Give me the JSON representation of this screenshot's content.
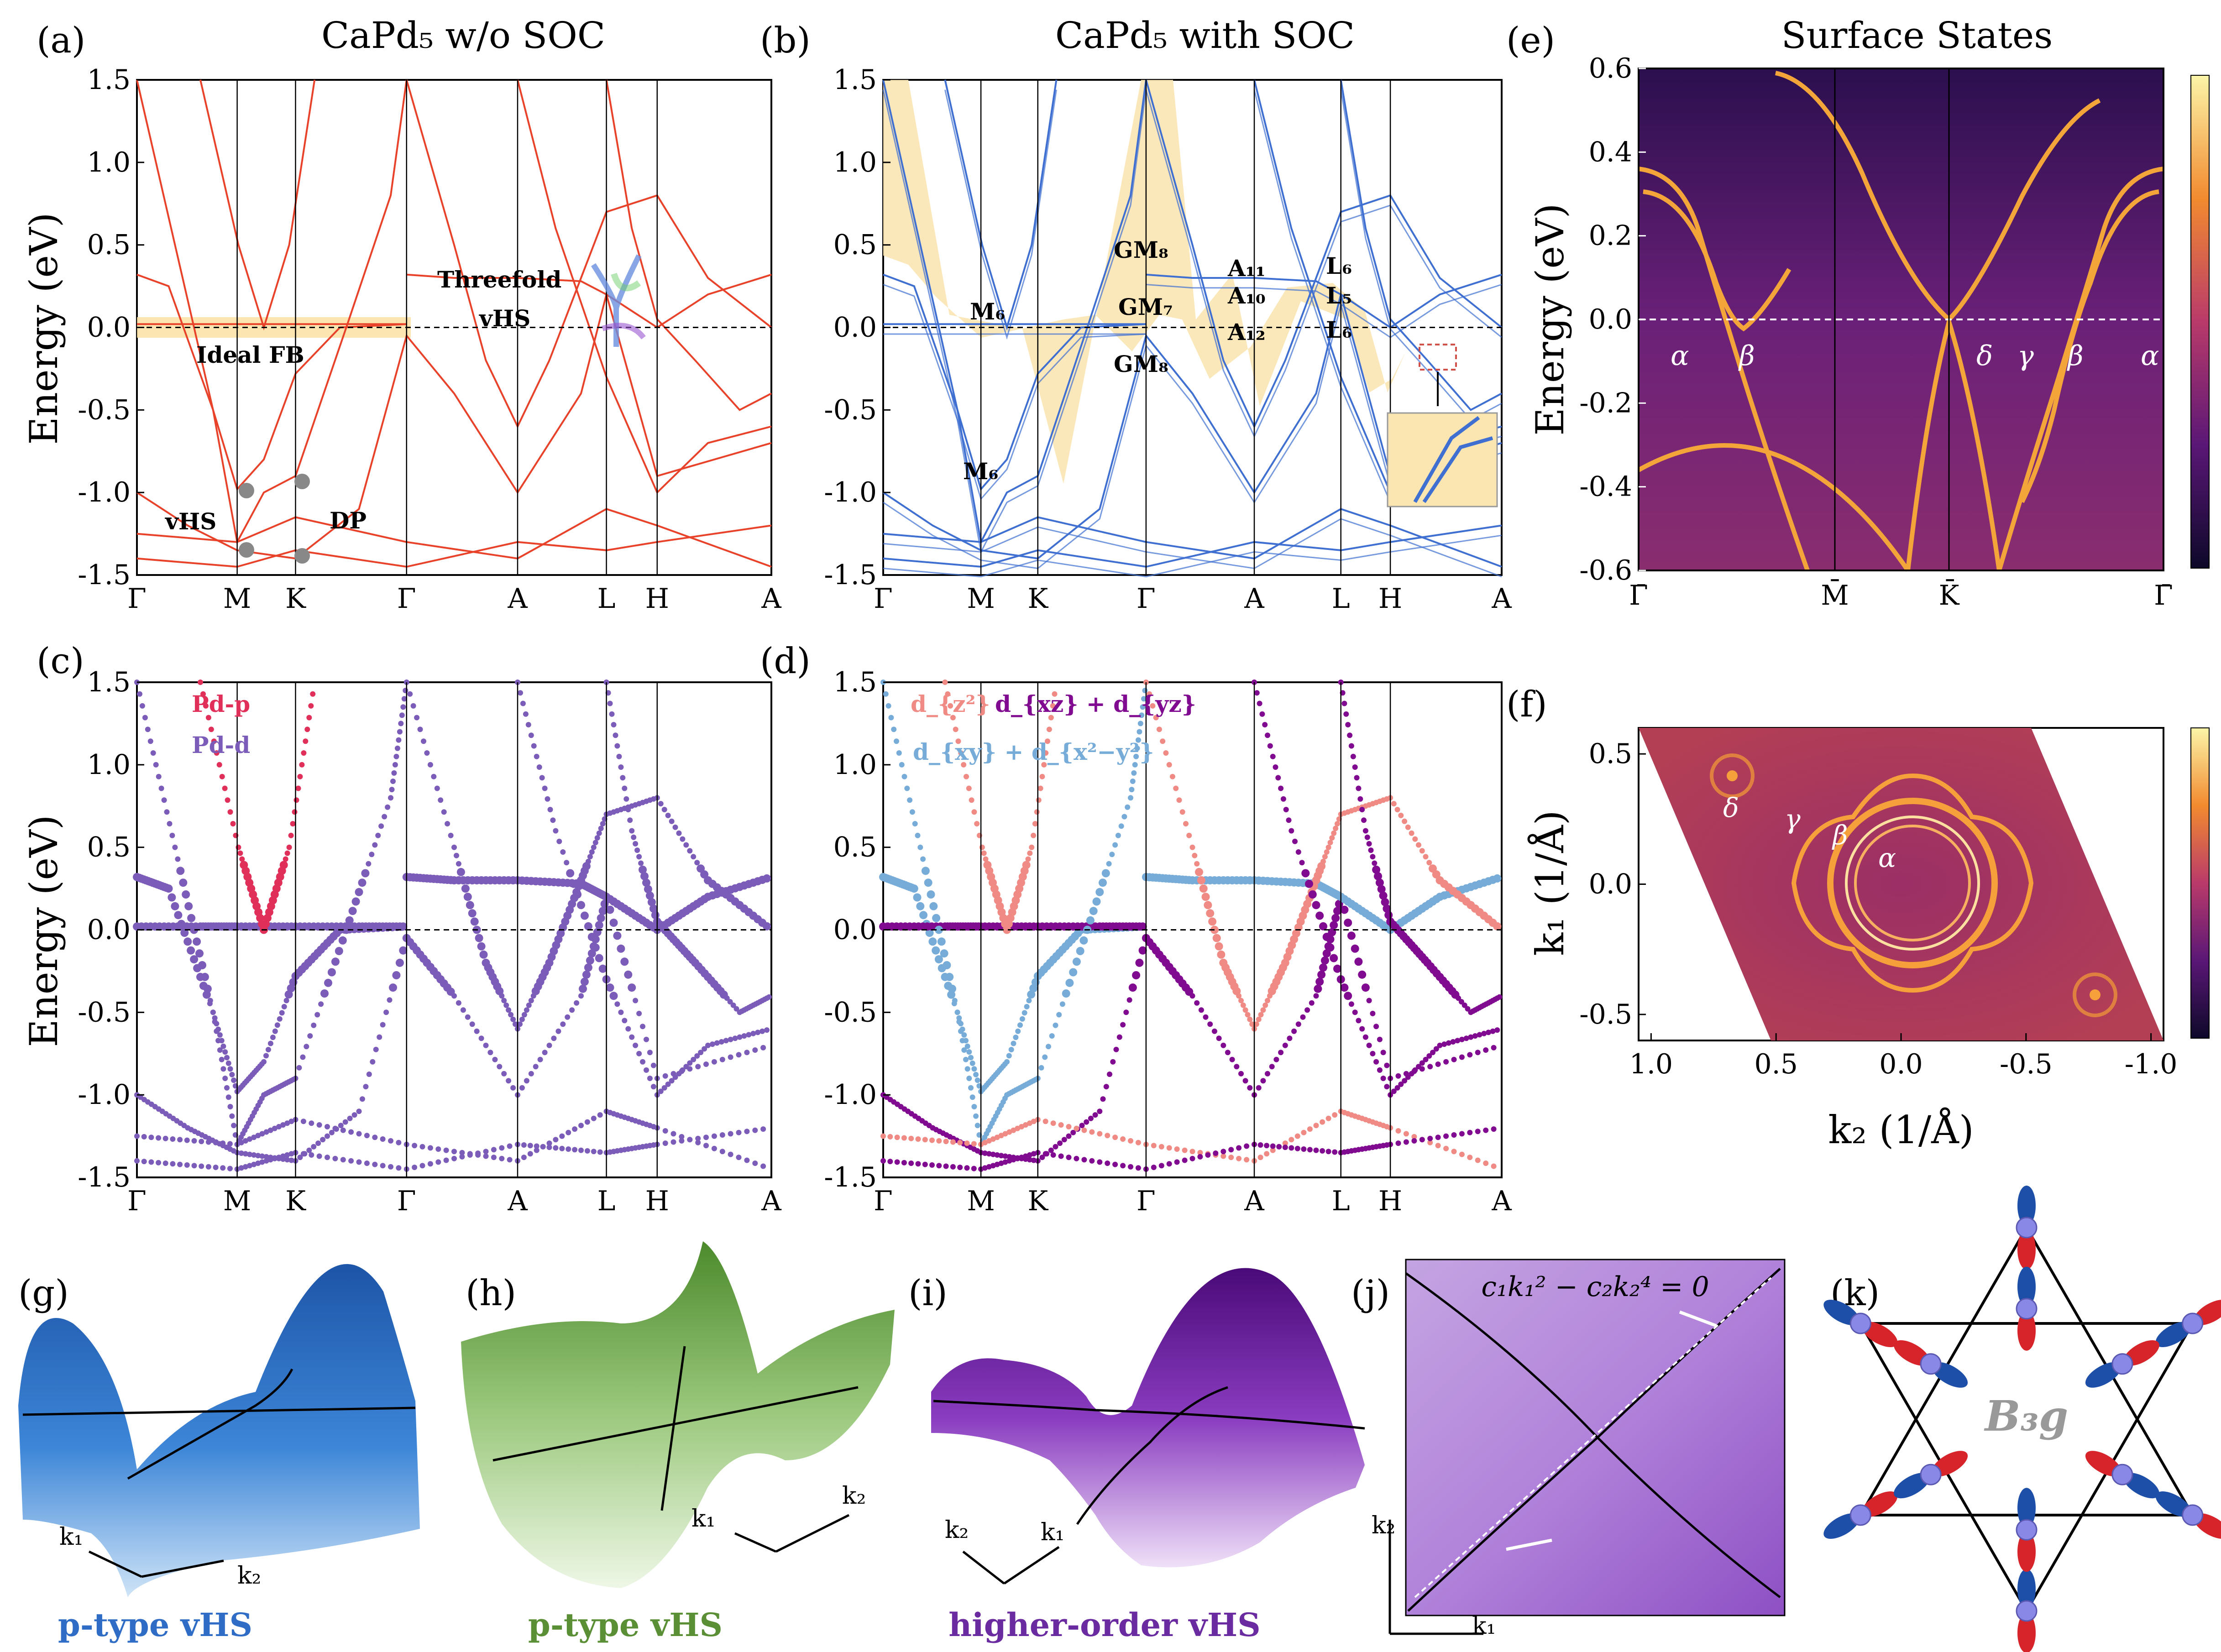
{
  "figure": {
    "panel_labels": [
      "(a)",
      "(b)",
      "(c)",
      "(d)",
      "(e)",
      "(f)",
      "(g)",
      "(h)",
      "(i)",
      "(j)",
      "(k)"
    ],
    "titles": {
      "a": "CaPd₅ w/o SOC",
      "b": "CaPd₅ with SOC",
      "e": "Surface States"
    },
    "y_axis_label": "Energy (eV)",
    "colors": {
      "bands_no_soc": "#e8432a",
      "bands_soc": "#3e6fd1",
      "pd_p": "#e0305a",
      "pd_d": "#7b5cb8",
      "dz2": "#f08a84",
      "dxz_dyz": "#800a90",
      "dxy_dx2y2": "#78acd8",
      "fill": "#fbe6b2"
    }
  },
  "annotations": {
    "a": {
      "ideal_fb": "Ideal FB",
      "vhs": "vHS",
      "dp": "DP",
      "threefold_line1": "Threefold",
      "threefold_line2": "vHS"
    },
    "b": {
      "labels": [
        "M₆",
        "M₆",
        "GM₈",
        "GM₇",
        "GM₈",
        "A₁₁",
        "A₁₀",
        "A₁₂",
        "L₆",
        "L₅",
        "L₆"
      ]
    },
    "c": {
      "legend": [
        "Pd-p",
        "Pd-d"
      ]
    },
    "d": {
      "legend": [
        "d_{z²}",
        "d_{xz} + d_{yz}",
        "d_{xy} + d_{x²−y²}"
      ]
    },
    "e": {
      "labels": [
        "α",
        "β",
        "δ",
        "γ",
        "β",
        "α"
      ]
    },
    "f": {
      "labels": [
        "δ",
        "γ",
        "β",
        "α"
      ]
    },
    "g": {
      "caption": "p-type vHS",
      "k1": "k₁",
      "k2": "k₂"
    },
    "h": {
      "caption": "p-type vHS",
      "k1": "k₁",
      "k2": "k₂"
    },
    "i": {
      "caption": "higher-order vHS",
      "k1": "k₁",
      "k2": "k₂"
    },
    "j": {
      "equation": "c₁k₁² − c₂k₂⁴ = 0",
      "k1": "k₁",
      "k2": "k₂"
    },
    "k": {
      "label": "B₃g"
    }
  },
  "chart_data": [
    {
      "panel": "a",
      "type": "line",
      "title": "CaPd₅ w/o SOC",
      "ylabel": "Energy (eV)",
      "ylim": [
        -1.5,
        1.5
      ],
      "yticks": [
        "1.5",
        "1.0",
        "0.5",
        "0.0",
        "-0.5",
        "-1.0",
        "-1.5"
      ],
      "kpath": [
        "Γ",
        "M",
        "K",
        "Γ",
        "A",
        "L",
        "H",
        "A"
      ]
    },
    {
      "panel": "b",
      "type": "line",
      "title": "CaPd₅ with SOC",
      "ylim": [
        -1.5,
        1.5
      ],
      "yticks": [
        "1.5",
        "1.0",
        "0.5",
        "0.0",
        "-0.5",
        "-1.0",
        "-1.5"
      ],
      "kpath": [
        "Γ",
        "M",
        "K",
        "Γ",
        "A",
        "L",
        "H",
        "A"
      ]
    },
    {
      "panel": "c",
      "type": "scatter",
      "ylabel": "Energy (eV)",
      "ylim": [
        -1.5,
        1.5
      ],
      "yticks": [
        "1.5",
        "1.0",
        "0.5",
        "0.0",
        "-0.5",
        "-1.0",
        "-1.5"
      ],
      "kpath": [
        "Γ",
        "M",
        "K",
        "Γ",
        "A",
        "L",
        "H",
        "A"
      ],
      "legend": [
        "Pd-p",
        "Pd-d"
      ]
    },
    {
      "panel": "d",
      "type": "scatter",
      "ylim": [
        -1.5,
        1.5
      ],
      "yticks": [
        "1.5",
        "1.0",
        "0.5",
        "0.0",
        "-0.5",
        "-1.0",
        "-1.5"
      ],
      "kpath": [
        "Γ",
        "M",
        "K",
        "Γ",
        "A",
        "L",
        "H",
        "A"
      ]
    },
    {
      "panel": "e",
      "type": "heatmap",
      "title": "Surface States",
      "ylabel": "Energy (eV)",
      "ylim": [
        -0.6,
        0.6
      ],
      "yticks": [
        "0.6",
        "0.4",
        "0.2",
        "0.0",
        "-0.2",
        "-0.4",
        "-0.6"
      ],
      "kpath": [
        "Γ̄",
        "M̄",
        "K̄",
        "Γ̄"
      ]
    },
    {
      "panel": "f",
      "type": "heatmap",
      "xlabel": "k₂ (1/Å)",
      "ylabel": "k₁ (1/Å)",
      "xlim": [
        1.05,
        -1.05
      ],
      "ylim": [
        -0.6,
        0.6
      ],
      "xticks": [
        "1.0",
        "0.5",
        "0.0",
        "-0.5",
        "-1.0"
      ],
      "yticks": [
        "0.5",
        "0.0",
        "-0.5"
      ]
    }
  ]
}
